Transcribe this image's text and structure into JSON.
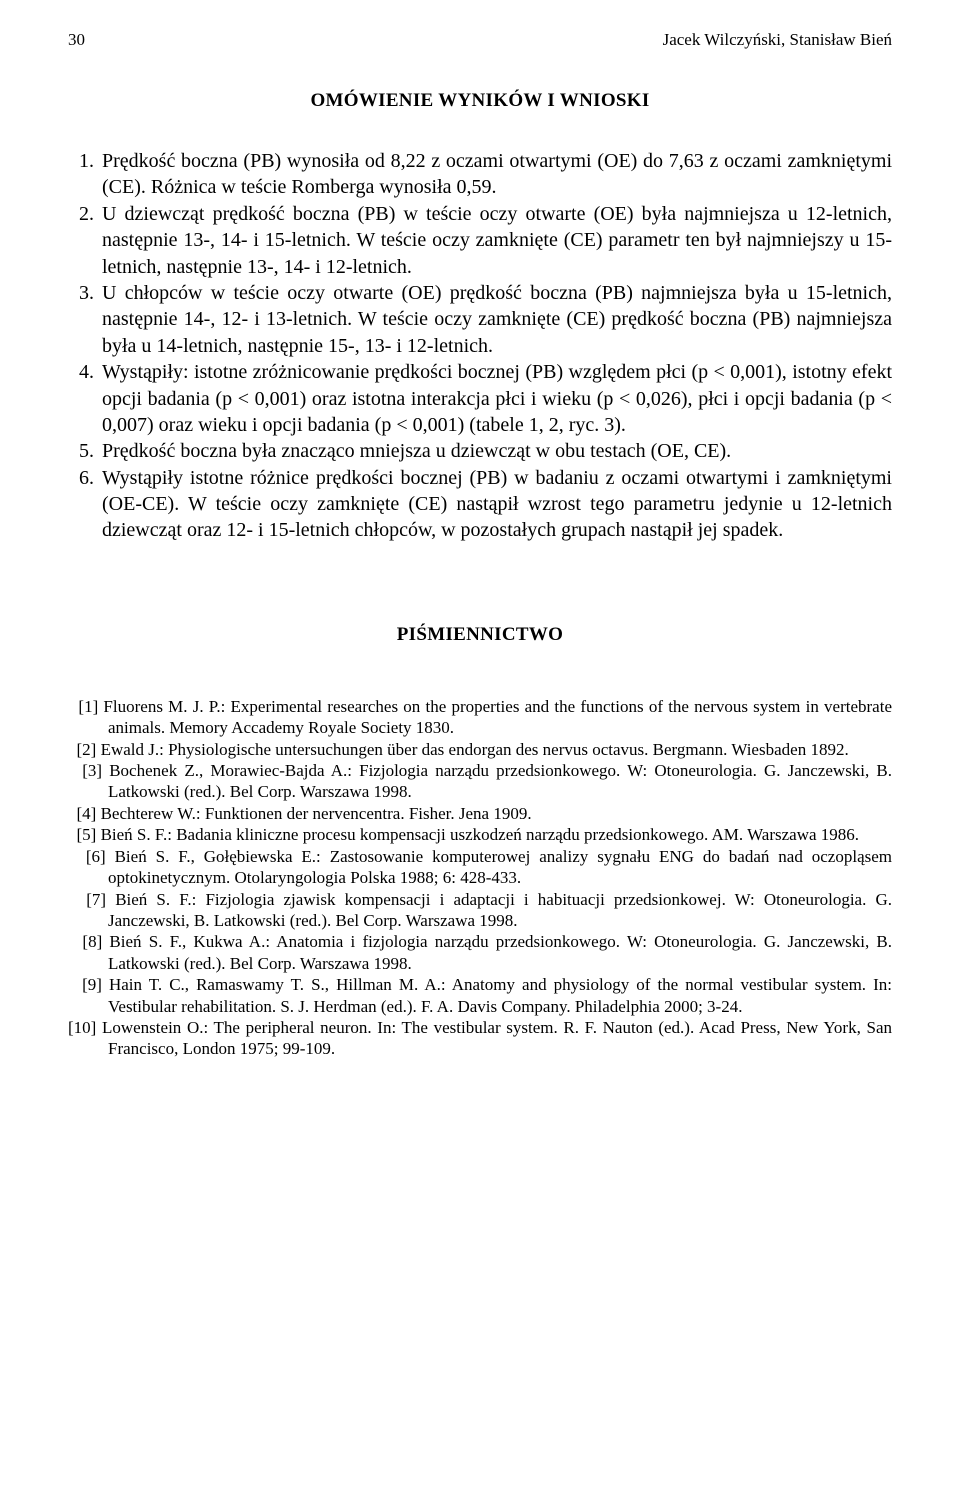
{
  "header": {
    "page_number": "30",
    "authors": "Jacek Wilczyński, Stanisław Bień"
  },
  "section1": {
    "heading": "OMÓWIENIE WYNIKÓW I WNIOSKI",
    "items": [
      "Prędkość boczna (PB) wynosiła od 8,22 z oczami otwartymi (OE) do 7,63 z oczami zamkniętymi (CE). Różnica w teście Romberga wynosiła 0,59.",
      "U dziewcząt prędkość boczna (PB) w teście oczy otwarte (OE) była najmniejsza u 12-letnich, następnie 13-, 14- i 15-letnich. W teście oczy zamknięte (CE) parametr ten był najmniejszy u 15-letnich, następnie 13-, 14- i 12-letnich.",
      "U chłopców w teście oczy otwarte (OE) prędkość boczna (PB) najmniejsza była u 15-letnich, następnie 14-, 12- i 13-letnich. W teście oczy zamknięte (CE) prędkość boczna (PB) najmniejsza była u 14-letnich, następnie 15-, 13- i 12-letnich.",
      "Wystąpiły: istotne zróżnicowanie prędkości bocznej (PB) względem płci (p < 0,001), istotny efekt opcji badania (p < 0,001) oraz istotna interakcja płci i wieku (p < 0,026), płci i opcji badania (p < 0,007) oraz wieku i opcji badania (p < 0,001) (tabele 1, 2, ryc. 3).",
      "Prędkość boczna była znacząco mniejsza u dziewcząt w obu testach (OE, CE).",
      "Wystąpiły istotne różnice prędkości bocznej (PB) w badaniu z oczami otwartymi i zamkniętymi (OE-CE). W teście oczy zamknięte (CE) nastąpił wzrost tego parametru jedynie u 12-letnich dziewcząt oraz 12- i 15-letnich chłopców, w pozostałych grupach nastąpił jej spadek."
    ]
  },
  "section2": {
    "heading": "PIŚMIENNICTWO",
    "items": [
      "Fluorens M. J. P.: Experimental researches on the properties and the functions of the nervous system in vertebrate animals. Memory Accademy Royale Society 1830.",
      "Ewald J.: Physiologische untersuchungen über das endorgan des nervus octavus. Bergmann. Wiesbaden 1892.",
      "Bochenek Z., Morawiec-Bajda A.: Fizjologia narządu przedsionkowego. W: Otoneurologia. G. Janczewski, B. Latkowski (red.). Bel Corp. Warszawa 1998.",
      "Bechterew W.: Funktionen der nervencentra. Fisher. Jena 1909.",
      "Bień S. F.: Badania kliniczne procesu kompensacji uszkodzeń narządu przedsionkowego. AM. Warszawa 1986.",
      "Bień S. F., Gołębiewska E.: Zastosowanie komputerowej analizy sygnału ENG do badań nad oczopląsem optokinetycznym. Otolaryngologia Polska 1988; 6: 428-433.",
      "Bień S. F.: Fizjologia zjawisk kompensacji i adaptacji i habituacji przedsionkowej. W: Otoneurologia. G. Janczewski, B. Latkowski (red.). Bel Corp. Warszawa 1998.",
      "Bień S. F., Kukwa A.: Anatomia i fizjologia narządu przedsionkowego. W: Otoneurologia. G. Janczewski, B. Latkowski (red.). Bel Corp. Warszawa 1998.",
      "Hain T. C., Ramaswamy T. S., Hillman M. A.: Anatomy and physiology of the normal vestibular system. In: Vestibular rehabilitation. S. J. Herdman (ed.). F. A. Davis Company. Philadelphia 2000; 3-24.",
      "Lowenstein O.: The peripheral neuron. In: The vestibular system. R. F. Nauton (ed.). Acad Press, New York, San Francisco, London 1975; 99-109."
    ]
  }
}
